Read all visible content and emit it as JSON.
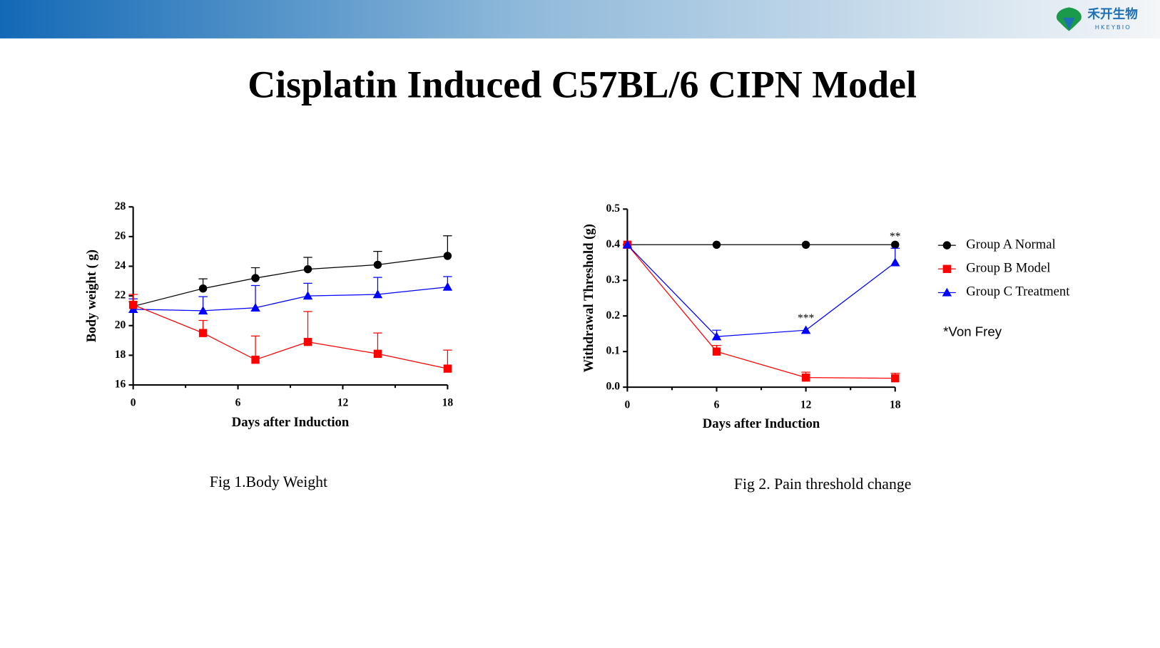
{
  "header": {
    "logo_text": "禾开生物",
    "logo_subtext": "HKEYBIO"
  },
  "title": "Cisplatin Induced C57BL/6 CIPN Model",
  "chart_data": [
    {
      "type": "line",
      "caption": "Fig 1.Body Weight",
      "xlabel": "Days after Induction",
      "ylabel": "Body weight ( g)",
      "x": [
        0,
        4,
        7,
        10,
        14,
        18
      ],
      "series": [
        {
          "color": "#000000",
          "marker": "circle",
          "values": [
            21.3,
            22.5,
            23.2,
            23.8,
            24.1,
            24.7
          ],
          "errors": [
            0.3,
            0.65,
            0.7,
            0.8,
            0.9,
            1.35
          ]
        },
        {
          "color": "#0000ff",
          "marker": "triangle",
          "values": [
            21.1,
            21.0,
            21.2,
            22.0,
            22.1,
            22.6
          ],
          "errors": [
            0.7,
            0.95,
            1.5,
            0.85,
            1.15,
            0.7
          ]
        },
        {
          "color": "#ff0000",
          "marker": "square",
          "values": [
            21.4,
            19.5,
            17.7,
            18.9,
            18.1,
            17.1
          ],
          "errors": [
            0.7,
            0.85,
            1.6,
            2.05,
            1.4,
            1.25
          ]
        }
      ],
      "xlim": [
        0,
        18
      ],
      "xticks": [
        0,
        6,
        12,
        18
      ],
      "xminorticks": [
        3,
        9,
        15
      ],
      "ylim": [
        16,
        28
      ],
      "yticks": [
        16,
        18,
        20,
        22,
        24,
        26,
        28
      ]
    },
    {
      "type": "line",
      "caption": "Fig 2. Pain threshold change",
      "xlabel": "Days after Induction",
      "ylabel": "Withdrawal Threshold (g)",
      "note": "*Von Frey",
      "legend": "right",
      "x": [
        0,
        6,
        12,
        18
      ],
      "series": [
        {
          "name": "Group A Normal",
          "color": "#000000",
          "marker": "circle",
          "values": [
            0.4,
            0.4,
            0.4,
            0.4
          ],
          "errors": [
            0,
            0,
            0,
            0
          ]
        },
        {
          "name": "Group B  Model",
          "color": "#ff0000",
          "marker": "square",
          "values": [
            0.4,
            0.1,
            0.027,
            0.025
          ],
          "errors": [
            0,
            0.017,
            0.015,
            0.014
          ]
        },
        {
          "name": "Group C Treatment",
          "color": "#0000ff",
          "marker": "triangle",
          "values": [
            0.4,
            0.142,
            0.16,
            0.35
          ],
          "errors": [
            0,
            0.018,
            0,
            0.04
          ],
          "significance": [
            null,
            null,
            "***",
            "**"
          ]
        }
      ],
      "xlim": [
        0,
        18
      ],
      "xticks": [
        0,
        6,
        12,
        18
      ],
      "xminorticks": [
        3,
        9,
        15
      ],
      "ylim": [
        0,
        0.5
      ],
      "yticks": [
        {
          "value": 0,
          "label": "0.0"
        },
        0.1,
        0.2,
        0.3,
        0.4,
        0.5
      ]
    }
  ]
}
